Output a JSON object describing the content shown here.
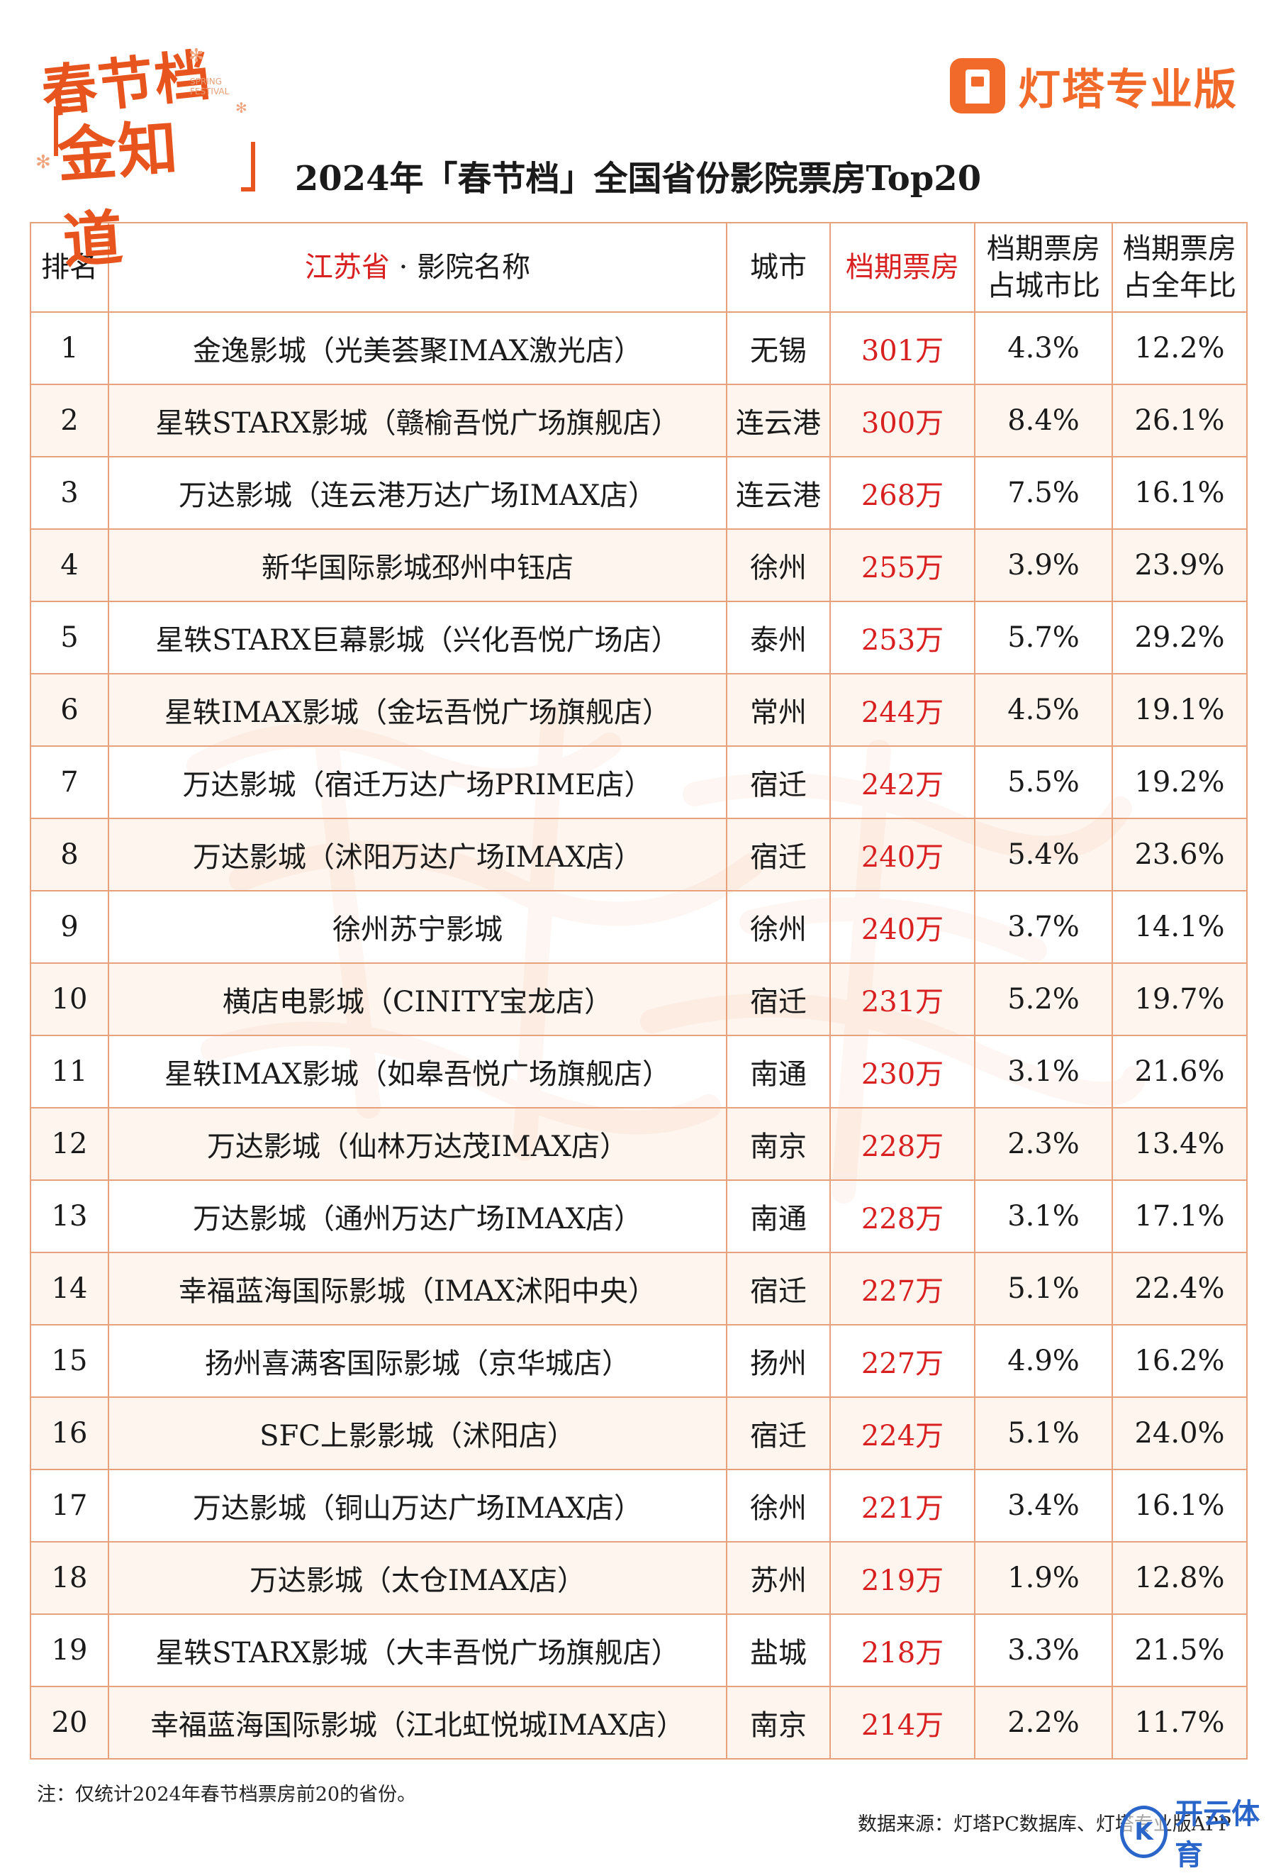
{
  "logo": {
    "line1": "春节档",
    "line2": "金知道",
    "tiny_text": "SPRING FESTIVAL"
  },
  "brand": {
    "name": "灯塔专业版"
  },
  "title": "2024年「春节档」全国省份影院票房Top20",
  "table": {
    "headers": {
      "rank": "排名",
      "province": "江苏省",
      "separator": "·",
      "name": "影院名称",
      "city": "城市",
      "box_office": "档期票房",
      "pct_city_line1": "档期票房",
      "pct_city_line2": "占城市比",
      "pct_year_line1": "档期票房",
      "pct_year_line2": "占全年比"
    },
    "rows": [
      {
        "rank": "1",
        "name": "金逸影城（光美荟聚IMAX激光店）",
        "city": "无锡",
        "box": "301万",
        "pct_city": "4.3%",
        "pct_year": "12.2%"
      },
      {
        "rank": "2",
        "name": "星轶STARX影城（赣榆吾悦广场旗舰店）",
        "city": "连云港",
        "box": "300万",
        "pct_city": "8.4%",
        "pct_year": "26.1%"
      },
      {
        "rank": "3",
        "name": "万达影城（连云港万达广场IMAX店）",
        "city": "连云港",
        "box": "268万",
        "pct_city": "7.5%",
        "pct_year": "16.1%"
      },
      {
        "rank": "4",
        "name": "新华国际影城邳州中钰店",
        "city": "徐州",
        "box": "255万",
        "pct_city": "3.9%",
        "pct_year": "23.9%"
      },
      {
        "rank": "5",
        "name": "星轶STARX巨幕影城（兴化吾悦广场店）",
        "city": "泰州",
        "box": "253万",
        "pct_city": "5.7%",
        "pct_year": "29.2%"
      },
      {
        "rank": "6",
        "name": "星轶IMAX影城（金坛吾悦广场旗舰店）",
        "city": "常州",
        "box": "244万",
        "pct_city": "4.5%",
        "pct_year": "19.1%"
      },
      {
        "rank": "7",
        "name": "万达影城（宿迁万达广场PRIME店）",
        "city": "宿迁",
        "box": "242万",
        "pct_city": "5.5%",
        "pct_year": "19.2%"
      },
      {
        "rank": "8",
        "name": "万达影城（沭阳万达广场IMAX店）",
        "city": "宿迁",
        "box": "240万",
        "pct_city": "5.4%",
        "pct_year": "23.6%"
      },
      {
        "rank": "9",
        "name": "徐州苏宁影城",
        "city": "徐州",
        "box": "240万",
        "pct_city": "3.7%",
        "pct_year": "14.1%"
      },
      {
        "rank": "10",
        "name": "横店电影城（CINITY宝龙店）",
        "city": "宿迁",
        "box": "231万",
        "pct_city": "5.2%",
        "pct_year": "19.7%"
      },
      {
        "rank": "11",
        "name": "星轶IMAX影城（如皋吾悦广场旗舰店）",
        "city": "南通",
        "box": "230万",
        "pct_city": "3.1%",
        "pct_year": "21.6%"
      },
      {
        "rank": "12",
        "name": "万达影城（仙林万达茂IMAX店）",
        "city": "南京",
        "box": "228万",
        "pct_city": "2.3%",
        "pct_year": "13.4%"
      },
      {
        "rank": "13",
        "name": "万达影城（通州万达广场IMAX店）",
        "city": "南通",
        "box": "228万",
        "pct_city": "3.1%",
        "pct_year": "17.1%"
      },
      {
        "rank": "14",
        "name": "幸福蓝海国际影城（IMAX沭阳中央）",
        "city": "宿迁",
        "box": "227万",
        "pct_city": "5.1%",
        "pct_year": "22.4%"
      },
      {
        "rank": "15",
        "name": "扬州喜满客国际影城（京华城店）",
        "city": "扬州",
        "box": "227万",
        "pct_city": "4.9%",
        "pct_year": "16.2%"
      },
      {
        "rank": "16",
        "name": "SFC上影影城（沭阳店）",
        "city": "宿迁",
        "box": "224万",
        "pct_city": "5.1%",
        "pct_year": "24.0%"
      },
      {
        "rank": "17",
        "name": "万达影城（铜山万达广场IMAX店）",
        "city": "徐州",
        "box": "221万",
        "pct_city": "3.4%",
        "pct_year": "16.1%"
      },
      {
        "rank": "18",
        "name": "万达影城（太仓IMAX店）",
        "city": "苏州",
        "box": "219万",
        "pct_city": "1.9%",
        "pct_year": "12.8%"
      },
      {
        "rank": "19",
        "name": "星轶STARX影城（大丰吾悦广场旗舰店）",
        "city": "盐城",
        "box": "218万",
        "pct_city": "3.3%",
        "pct_year": "21.5%"
      },
      {
        "rank": "20",
        "name": "幸福蓝海国际影城（江北虹悦城IMAX店）",
        "city": "南京",
        "box": "214万",
        "pct_city": "2.2%",
        "pct_year": "11.7%"
      }
    ]
  },
  "footer": {
    "note": "注：仅统计2024年春节档票房前20的省份。",
    "source": "数据来源：灯塔PC数据库、灯塔专业版APP",
    "watermark_mark": "K",
    "watermark_text": "开云体育"
  },
  "colors": {
    "accent": "#f16a2a",
    "highlight_red": "#d92020",
    "border": "#e7a27c",
    "stripe": "#fdece2"
  }
}
